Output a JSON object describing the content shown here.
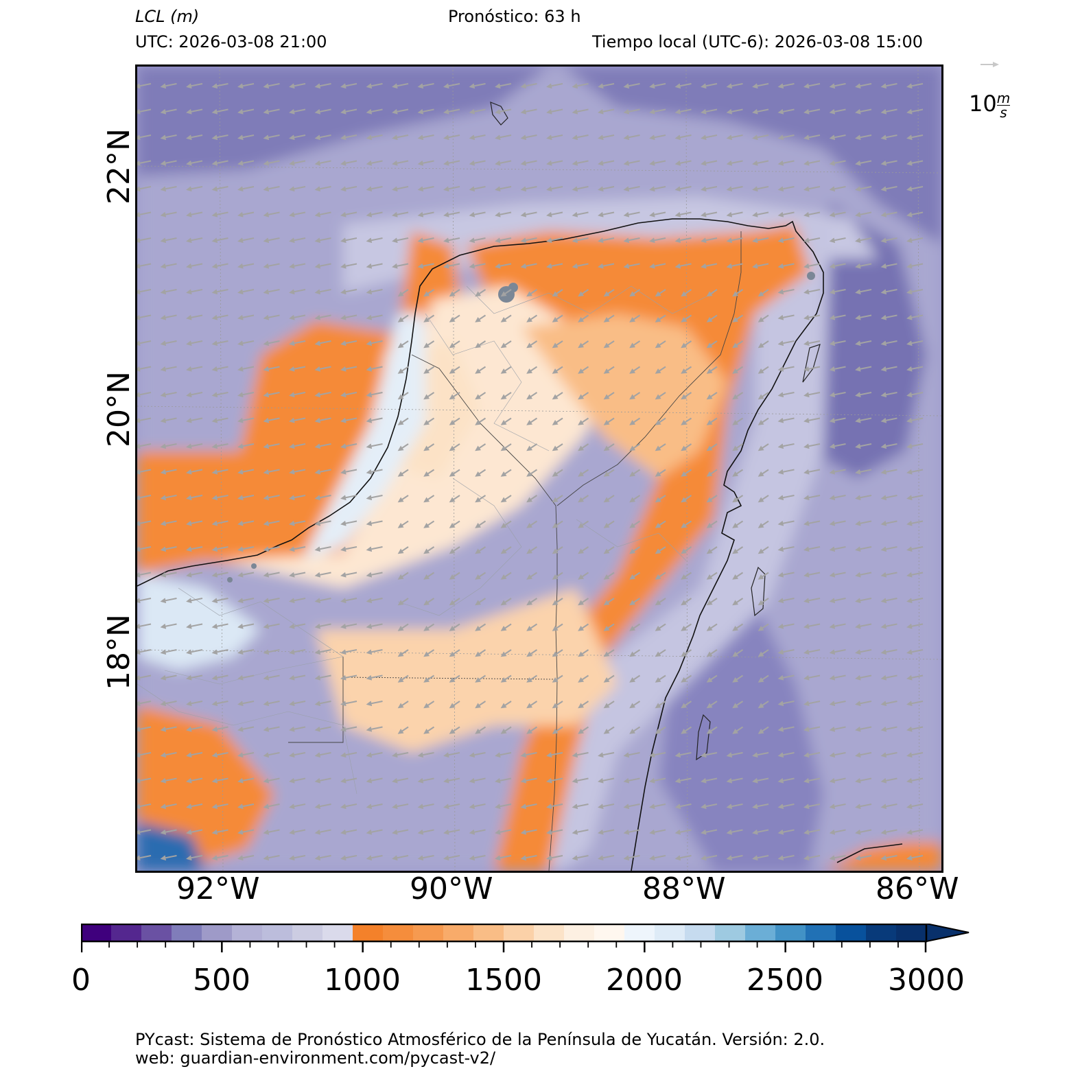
{
  "header": {
    "variable_label": "LCL (m)",
    "forecast_label": "Pronóstico: 63 h",
    "utc_label": "UTC:  2026-03-08 21:00",
    "local_label": "Tiempo local (UTC-6): 2026-03-08 15:00"
  },
  "wind_key": {
    "value_text": "10",
    "unit_num": "m",
    "unit_den": "s"
  },
  "map": {
    "lat_labels": [
      "22°N",
      "20°N",
      "18°N"
    ],
    "lon_labels": [
      "92°W",
      "90°W",
      "88°W",
      "86°W"
    ],
    "wind_direction": "from east-northeast (arrows point west-southwest)"
  },
  "colorbar": {
    "min": 0,
    "max": 3000,
    "extend": "max",
    "tick_labels": [
      "0",
      "500",
      "1000",
      "1500",
      "2000",
      "2500",
      "3000"
    ],
    "colors": [
      "#3f007d",
      "#54278f",
      "#6a51a3",
      "#807dba",
      "#9e9ac8",
      "#b4b2d6",
      "#bcbddc",
      "#cccce2",
      "#dadaeb",
      "#f4812a",
      "#f58d3c",
      "#f69a50",
      "#f8ab6a",
      "#f9bd86",
      "#fbd1a8",
      "#fce3c8",
      "#fdf0e2",
      "#fff7ef",
      "#eef5fc",
      "#deebf7",
      "#c6dbef",
      "#9ecae1",
      "#6baed6",
      "#4292c6",
      "#2171b5",
      "#08519c",
      "#083a7a",
      "#08306b"
    ]
  },
  "footer": {
    "line1": "PYcast: Sistema de Pronóstico Atmosférico de la Península de Yucatán. Versión: 2.0.",
    "line2": "web: guardian-environment.com/pycast-v2/"
  }
}
